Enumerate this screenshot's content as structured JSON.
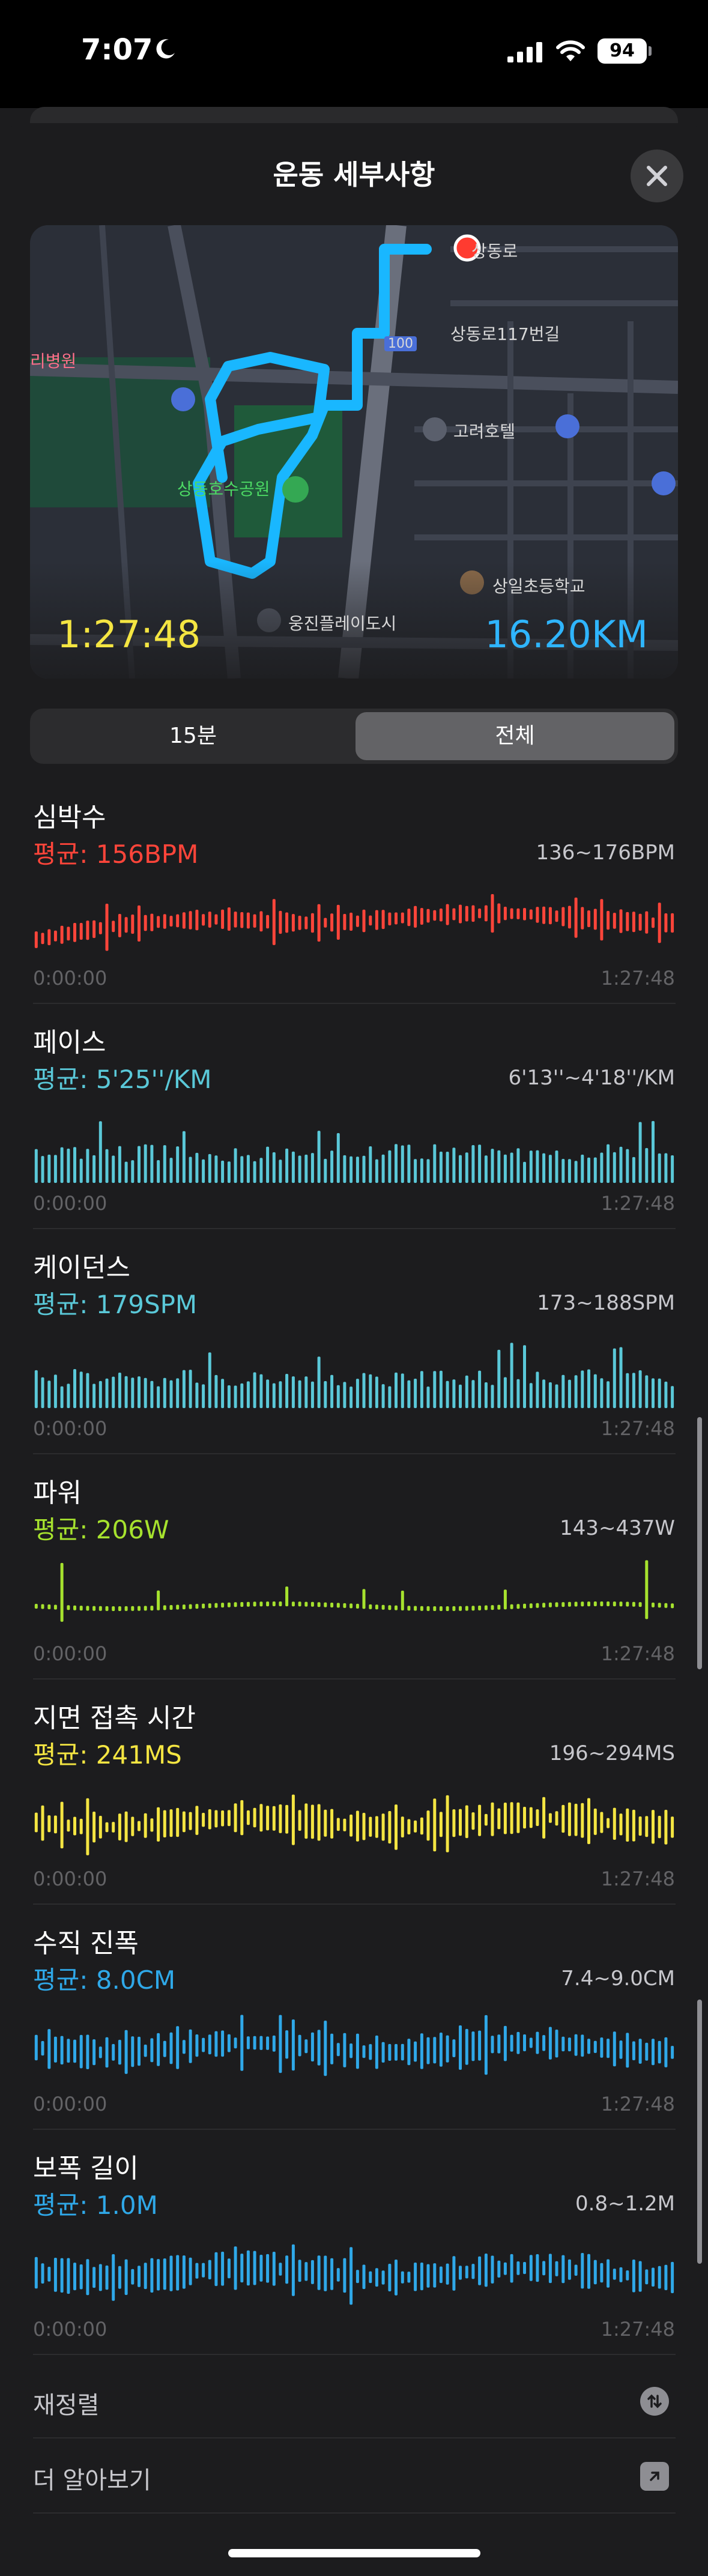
{
  "status_bar": {
    "time": "7:07",
    "battery": "94"
  },
  "sheet": {
    "title": "운동 세부사항"
  },
  "map": {
    "labels": [
      {
        "text": "리병원",
        "color": "pink"
      },
      {
        "text": "상동로117번길",
        "color": ""
      },
      {
        "text": "고려호텔",
        "color": ""
      },
      {
        "text": "상동호수공원",
        "color": "green"
      },
      {
        "text": "상일초등학교",
        "color": ""
      },
      {
        "text": "웅진플레이도시",
        "color": ""
      },
      {
        "text": "100",
        "color": ""
      },
      {
        "text": "상동로",
        "color": ""
      }
    ],
    "duration": "1:27:48",
    "distance": "16.20KM"
  },
  "segments": {
    "first": "15분",
    "second": "전체",
    "selected": "전체"
  },
  "metrics": [
    {
      "title": "심박수",
      "avg": "평균: 156BPM",
      "range": "136~176BPM",
      "color": "#ff453a",
      "start": "0:00:00",
      "end": "1:27:48",
      "style": "line"
    },
    {
      "title": "페이스",
      "avg": "평균: 5'25''/KM",
      "range": "6'13''~4'18''/KM",
      "color": "#5ac8d8",
      "start": "0:00:00",
      "end": "1:27:48",
      "style": "bar"
    },
    {
      "title": "케이던스",
      "avg": "평균: 179SPM",
      "range": "173~188SPM",
      "color": "#5ac8d8",
      "start": "0:00:00",
      "end": "1:27:48",
      "style": "bar"
    },
    {
      "title": "파워",
      "avg": "평균: 206W",
      "range": "143~437W",
      "color": "#a6e22e",
      "start": "0:00:00",
      "end": "1:27:48",
      "style": "dots"
    },
    {
      "title": "지면 접촉 시간",
      "avg": "평균: 241MS",
      "range": "196~294MS",
      "color": "#f4e542",
      "start": "0:00:00",
      "end": "1:27:48",
      "style": "line"
    },
    {
      "title": "수직 진폭",
      "avg": "평균: 8.0CM",
      "range": "7.4~9.0CM",
      "color": "#2fa8e8",
      "start": "0:00:00",
      "end": "1:27:48",
      "style": "line"
    },
    {
      "title": "보폭 길이",
      "avg": "평균: 1.0M",
      "range": "0.8~1.2M",
      "color": "#2fa8e8",
      "start": "0:00:00",
      "end": "1:27:48",
      "style": "line"
    }
  ],
  "rows": [
    {
      "label": "재정렬",
      "icon": "reorder-icon"
    },
    {
      "label": "더 알아보기",
      "icon": "open-external-icon"
    }
  ]
}
